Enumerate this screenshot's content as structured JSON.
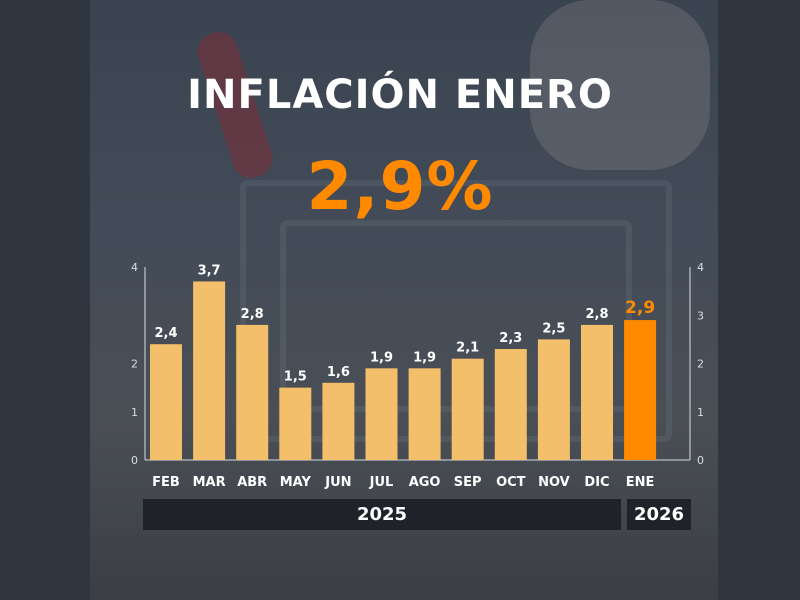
{
  "header": {
    "title": "INFLACIÓN ENERO",
    "headline_value": "2,9%"
  },
  "chart_data": {
    "type": "bar",
    "categories": [
      "FEB",
      "MAR",
      "ABR",
      "MAY",
      "JUN",
      "JUL",
      "AGO",
      "SEP",
      "OCT",
      "NOV",
      "DIC",
      "ENE"
    ],
    "values": [
      2.4,
      3.7,
      2.8,
      1.5,
      1.6,
      1.9,
      1.9,
      2.1,
      2.3,
      2.5,
      2.8,
      2.9
    ],
    "value_labels": [
      "2,4",
      "3,7",
      "2,8",
      "1,5",
      "1,6",
      "1,9",
      "1,9",
      "2,1",
      "2,3",
      "2,5",
      "2,8",
      "2,9"
    ],
    "highlight_index": 11,
    "ylim": [
      0,
      4
    ],
    "left_ticks": [
      "0",
      "1",
      "2",
      "4"
    ],
    "left_tick_values": [
      0,
      1,
      2,
      4
    ],
    "right_ticks": [
      "0",
      "1",
      "2",
      "3",
      "4"
    ],
    "right_tick_values": [
      0,
      1,
      2,
      3,
      4
    ],
    "grid": false,
    "year_groups": [
      {
        "label": "2025",
        "from": "FEB",
        "to": "DIC"
      },
      {
        "label": "2026",
        "from": "ENE",
        "to": "ENE"
      }
    ]
  },
  "colors": {
    "bar": "#f3bf6b",
    "highlight": "#ff8a00",
    "text": "#ffffff",
    "axis": "#d8dde3"
  }
}
